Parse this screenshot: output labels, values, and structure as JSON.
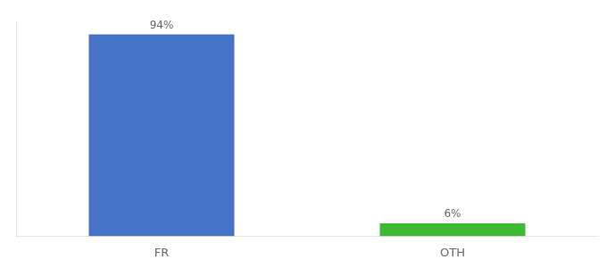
{
  "chart_data": {
    "type": "bar",
    "categories": [
      "FR",
      "OTH"
    ],
    "values": [
      94,
      6
    ],
    "colors": [
      "#4472c4",
      "#3dbb35"
    ],
    "value_labels": [
      "94%",
      "6%"
    ],
    "ylim": [
      0,
      100
    ],
    "data_labels": true,
    "tick_labels": "x",
    "grid": false
  }
}
